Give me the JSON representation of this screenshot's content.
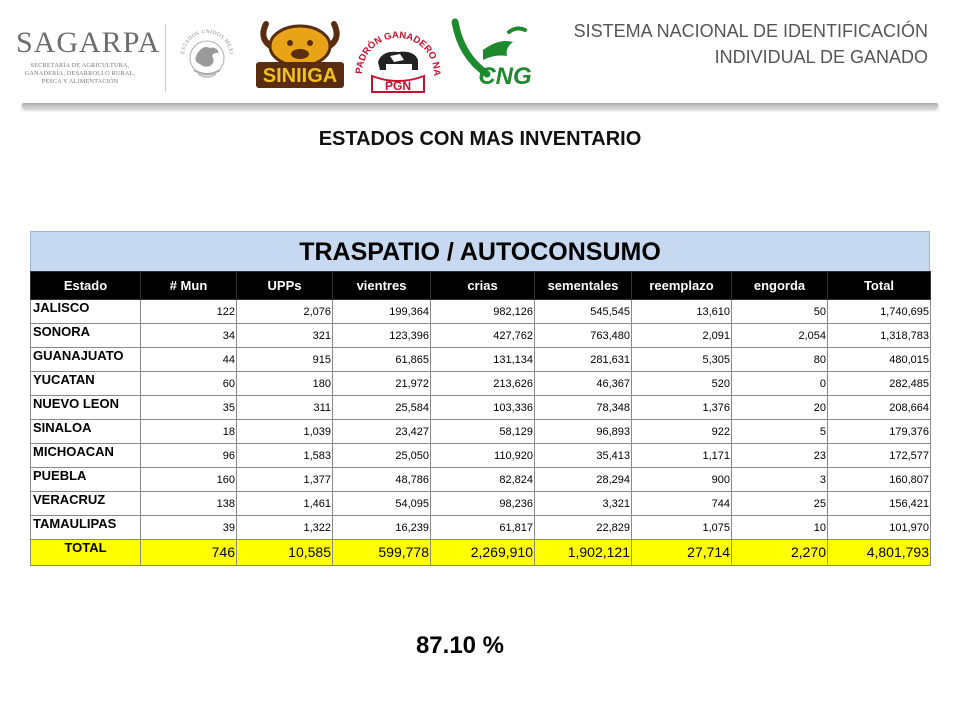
{
  "header": {
    "sagarpa": {
      "name": "SAGARPA",
      "subtitle_lines": [
        "SECRETARÍA DE AGRICULTURA,",
        "GANADERÍA, DESARROLLO RURAL,",
        "PESCA Y ALIMENTACIÓN"
      ]
    },
    "logos": {
      "seal_text": "ESTADOS UNIDOS MEXICANOS",
      "siniiga": "SINIIGA",
      "pgn_arc": "PADRÓN GANADERO NACIONAL",
      "pgn_abbr": "PGN",
      "cng": "CNG"
    },
    "system_title_line1": "SISTEMA NACIONAL DE IDENTIFICACIÓN",
    "system_title_line2": "INDIVIDUAL DE GANADO"
  },
  "page_title": "ESTADOS CON MAS INVENTARIO",
  "table": {
    "title": "TRASPATIO / AUTOCONSUMO",
    "headers": [
      "Estado",
      "# Mun",
      "UPPs",
      "vientres",
      "crias",
      "sementales",
      "reemplazo",
      "engorda",
      "Total"
    ],
    "rows": [
      [
        "JALISCO",
        "122",
        "2,076",
        "199,364",
        "982,126",
        "545,545",
        "13,610",
        "50",
        "1,740,695"
      ],
      [
        "SONORA",
        "34",
        "321",
        "123,396",
        "427,762",
        "763,480",
        "2,091",
        "2,054",
        "1,318,783"
      ],
      [
        "GUANAJUATO",
        "44",
        "915",
        "61,865",
        "131,134",
        "281,631",
        "5,305",
        "80",
        "480,015"
      ],
      [
        "YUCATAN",
        "60",
        "180",
        "21,972",
        "213,626",
        "46,367",
        "520",
        "0",
        "282,485"
      ],
      [
        "NUEVO LEON",
        "35",
        "311",
        "25,584",
        "103,336",
        "78,348",
        "1,376",
        "20",
        "208,664"
      ],
      [
        "SINALOA",
        "18",
        "1,039",
        "23,427",
        "58,129",
        "96,893",
        "922",
        "5",
        "179,376"
      ],
      [
        "MICHOACAN",
        "96",
        "1,583",
        "25,050",
        "110,920",
        "35,413",
        "1,171",
        "23",
        "172,577"
      ],
      [
        "PUEBLA",
        "160",
        "1,377",
        "48,786",
        "82,824",
        "28,294",
        "900",
        "3",
        "160,807"
      ],
      [
        "VERACRUZ",
        "138",
        "1,461",
        "54,095",
        "98,236",
        "3,321",
        "744",
        "25",
        "156,421"
      ],
      [
        "TAMAULIPAS",
        "39",
        "1,322",
        "16,239",
        "61,817",
        "22,829",
        "1,075",
        "10",
        "101,970"
      ]
    ],
    "total": [
      "TOTAL",
      "746",
      "10,585",
      "599,778",
      "2,269,910",
      "1,902,121",
      "27,714",
      "2,270",
      "4,801,793"
    ]
  },
  "percentage": "87.10 %",
  "colors": {
    "table_title_bg": "#c6d9f1",
    "header_bg": "#000000",
    "total_bg": "#ffff00",
    "cng_green": "#1e8a2e",
    "pgn_red": "#c8102e",
    "siniiga_brown": "#5a2d10",
    "siniiga_gold": "#e8a317"
  }
}
